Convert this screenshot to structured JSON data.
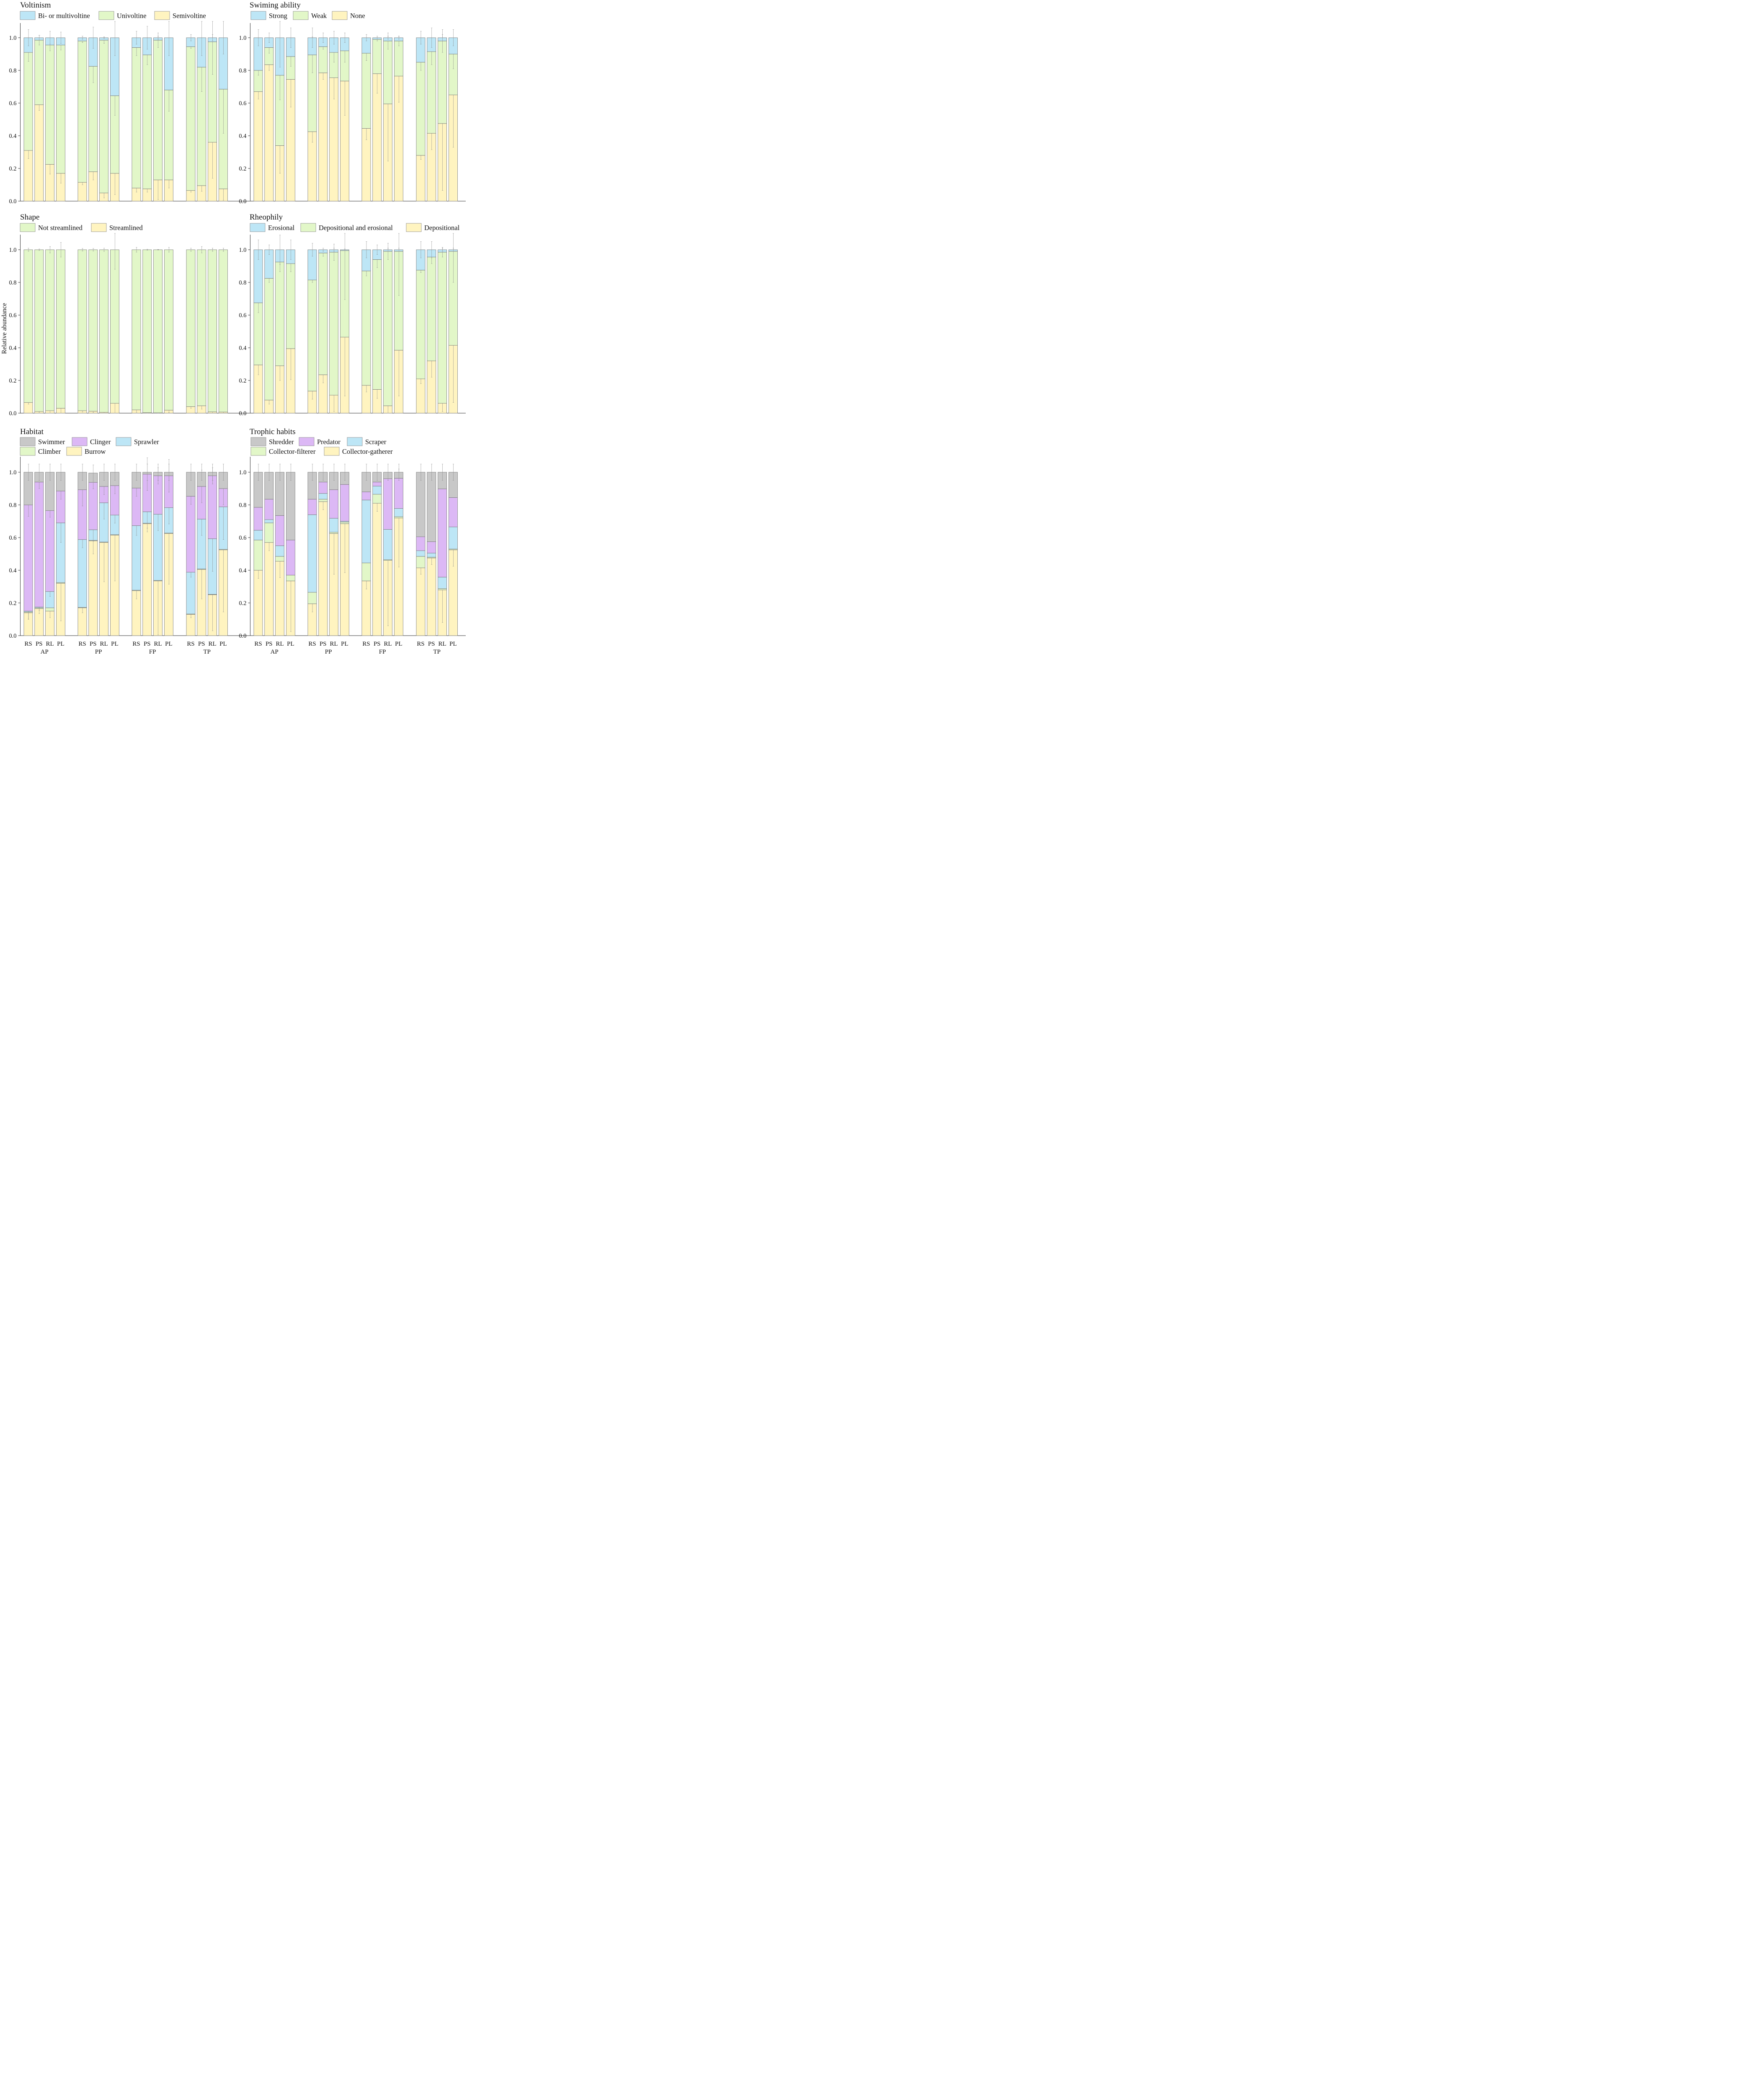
{
  "y_axis_title": "Relative abundance",
  "groups": [
    "AP",
    "PP",
    "FP",
    "TP"
  ],
  "sites": [
    "RS",
    "PS",
    "RL",
    "PL"
  ],
  "y_ticks": [
    "0.0",
    "0.2",
    "0.4",
    "0.6",
    "0.8",
    "1.0"
  ],
  "chart_data": [
    {
      "type": "bar",
      "stacked": true,
      "title": "Voltinism",
      "categories": [
        "AP-RS",
        "AP-PS",
        "AP-RL",
        "AP-PL",
        "PP-RS",
        "PP-PS",
        "PP-RL",
        "PP-PL",
        "FP-RS",
        "FP-PS",
        "FP-RL",
        "FP-PL",
        "TP-RS",
        "TP-PS",
        "TP-RL",
        "TP-PL"
      ],
      "ylim": [
        0,
        1
      ],
      "ylabel": "Relative abundance",
      "series": [
        {
          "name": "Semivoltine",
          "color": "#fff4c0",
          "values": [
            0.31,
            0.59,
            0.225,
            0.17,
            0.115,
            0.18,
            0.05,
            0.17,
            0.08,
            0.075,
            0.13,
            0.13,
            0.065,
            0.095,
            0.36,
            0.075
          ],
          "errors": [
            0.05,
            0.035,
            0.06,
            0.06,
            0.015,
            0.05,
            0.03,
            0.13,
            0.025,
            0.02,
            0.12,
            0.05,
            0.01,
            0.035,
            0.22,
            0.07
          ]
        },
        {
          "name": "Univoltine",
          "color": "#e2f7c8",
          "values": [
            0.6,
            0.395,
            0.73,
            0.785,
            0.865,
            0.645,
            0.935,
            0.475,
            0.86,
            0.82,
            0.855,
            0.55,
            0.88,
            0.725,
            0.615,
            0.61
          ],
          "errors": [
            0.055,
            0.03,
            0.035,
            0.03,
            0.01,
            0.1,
            0.02,
            0.12,
            0.05,
            0.06,
            0.045,
            0.13,
            0.01,
            0.15,
            0.2,
            0.27
          ]
        },
        {
          "name": "Bi- or multivoltine",
          "color": "#bde6f6",
          "values": [
            0.09,
            0.015,
            0.045,
            0.045,
            0.02,
            0.175,
            0.015,
            0.355,
            0.06,
            0.105,
            0.015,
            0.32,
            0.055,
            0.18,
            0.025,
            0.315
          ],
          "errors": [
            0.05,
            0.015,
            0.04,
            0.035,
            0.01,
            0.065,
            0.005,
            0.11,
            0.04,
            0.07,
            0.01,
            0.11,
            0.02,
            0.11,
            0.02,
            0.1
          ]
        }
      ]
    },
    {
      "type": "bar",
      "stacked": true,
      "title": "Swiming ability",
      "categories": [
        "AP-RS",
        "AP-PS",
        "AP-RL",
        "AP-PL",
        "PP-RS",
        "PP-PS",
        "PP-RL",
        "PP-PL",
        "FP-RS",
        "FP-PS",
        "FP-RL",
        "FP-PL",
        "TP-RS",
        "TP-PS",
        "TP-RL",
        "TP-PL"
      ],
      "ylim": [
        0,
        1
      ],
      "series": [
        {
          "name": "None",
          "color": "#fff4c0",
          "values": [
            0.67,
            0.835,
            0.34,
            0.745,
            0.425,
            0.785,
            0.755,
            0.735,
            0.445,
            0.78,
            0.595,
            0.765,
            0.28,
            0.415,
            0.475,
            0.65
          ],
          "errors": [
            0.045,
            0.035,
            0.17,
            0.17,
            0.065,
            0.04,
            0.13,
            0.21,
            0.07,
            0.12,
            0.35,
            0.16,
            0.025,
            0.1,
            0.41,
            0.32
          ]
        },
        {
          "name": "Weak",
          "color": "#e2f7c8",
          "values": [
            0.13,
            0.105,
            0.43,
            0.14,
            0.47,
            0.16,
            0.155,
            0.185,
            0.46,
            0.21,
            0.385,
            0.215,
            0.57,
            0.5,
            0.505,
            0.25
          ],
          "errors": [
            0.03,
            0.035,
            0.15,
            0.06,
            0.11,
            0.015,
            0.06,
            0.07,
            0.045,
            0.01,
            0.05,
            0.03,
            0.05,
            0.08,
            0.07,
            0.09
          ]
        },
        {
          "name": "Strong",
          "color": "#bde6f6",
          "values": [
            0.2,
            0.06,
            0.23,
            0.115,
            0.105,
            0.055,
            0.09,
            0.08,
            0.095,
            0.01,
            0.02,
            0.02,
            0.15,
            0.085,
            0.02,
            0.1
          ],
          "errors": [
            0.05,
            0.03,
            0.18,
            0.06,
            0.06,
            0.03,
            0.04,
            0.03,
            0.02,
            0.01,
            0.01,
            0.01,
            0.04,
            0.06,
            0.02,
            0.05
          ]
        }
      ]
    },
    {
      "type": "bar",
      "stacked": true,
      "title": "Shape",
      "categories": [
        "AP-RS",
        "AP-PS",
        "AP-RL",
        "AP-PL",
        "PP-RS",
        "PP-PS",
        "PP-RL",
        "PP-PL",
        "FP-RS",
        "FP-PS",
        "FP-RL",
        "FP-PL",
        "TP-RS",
        "TP-PS",
        "TP-RL",
        "TP-PL"
      ],
      "ylim": [
        0,
        1
      ],
      "series": [
        {
          "name": "Streamlined",
          "color": "#fff4c0",
          "values": [
            0.065,
            0.01,
            0.015,
            0.03,
            0.015,
            0.012,
            0.005,
            0.06,
            0.02,
            0.003,
            0.002,
            0.018,
            0.04,
            0.045,
            0.008,
            0.007
          ],
          "errors": [
            0.01,
            0.005,
            0.02,
            0.045,
            0.008,
            0.008,
            0.01,
            0.12,
            0.015,
            0.003,
            0.002,
            0.015,
            0.01,
            0.02,
            0.01,
            0.01
          ]
        },
        {
          "name": "Not streamlined",
          "color": "#e2f7c8",
          "values": [
            0.935,
            0.99,
            0.985,
            0.97,
            0.985,
            0.988,
            0.995,
            0.94,
            0.98,
            0.997,
            0.998,
            0.982,
            0.96,
            0.955,
            0.992,
            0.993
          ],
          "errors": [
            0.01,
            0.005,
            0.02,
            0.045,
            0.008,
            0.008,
            0.01,
            0.12,
            0.015,
            0.003,
            0.002,
            0.015,
            0.01,
            0.02,
            0.01,
            0.01
          ]
        }
      ]
    },
    {
      "type": "bar",
      "stacked": true,
      "title": "Rheophily",
      "categories": [
        "AP-RS",
        "AP-PS",
        "AP-RL",
        "AP-PL",
        "PP-RS",
        "PP-PS",
        "PP-RL",
        "PP-PL",
        "FP-RS",
        "FP-PS",
        "FP-RL",
        "FP-PL",
        "TP-RS",
        "TP-PS",
        "TP-RL",
        "TP-PL"
      ],
      "ylim": [
        0,
        1
      ],
      "series": [
        {
          "name": "Depositional",
          "color": "#fff4c0",
          "values": [
            0.295,
            0.08,
            0.29,
            0.395,
            0.135,
            0.235,
            0.11,
            0.465,
            0.17,
            0.145,
            0.045,
            0.385,
            0.21,
            0.32,
            0.06,
            0.415
          ],
          "errors": [
            0.06,
            0.025,
            0.09,
            0.19,
            0.05,
            0.05,
            0.1,
            0.36,
            0.04,
            0.055,
            0.05,
            0.28,
            0.03,
            0.1,
            0.05,
            0.35
          ]
        },
        {
          "name": "Depositional and erosional",
          "color": "#e2f7c8",
          "values": [
            0.38,
            0.745,
            0.635,
            0.52,
            0.68,
            0.745,
            0.875,
            0.53,
            0.7,
            0.795,
            0.945,
            0.605,
            0.665,
            0.635,
            0.925,
            0.575
          ],
          "errors": [
            0.06,
            0.025,
            0.06,
            0.05,
            0.015,
            0.02,
            0.05,
            0.3,
            0.03,
            0.05,
            0.05,
            0.27,
            0.015,
            0.04,
            0.03,
            0.19
          ]
        },
        {
          "name": "Erosional",
          "color": "#bde6f6",
          "values": [
            0.325,
            0.175,
            0.075,
            0.085,
            0.185,
            0.02,
            0.015,
            0.005,
            0.13,
            0.06,
            0.01,
            0.01,
            0.125,
            0.045,
            0.015,
            0.01
          ],
          "errors": [
            0.06,
            0.03,
            0.09,
            0.06,
            0.04,
            0.01,
            0.01,
            0.005,
            0.05,
            0.03,
            0.01,
            0.01,
            0.05,
            0.05,
            0.01,
            0.01
          ]
        }
      ]
    },
    {
      "type": "bar",
      "stacked": true,
      "title": "Habitat",
      "categories": [
        "AP-RS",
        "AP-PS",
        "AP-RL",
        "AP-PL",
        "PP-RS",
        "PP-PS",
        "PP-RL",
        "PP-PL",
        "FP-RS",
        "FP-PS",
        "FP-RL",
        "FP-PL",
        "TP-RS",
        "TP-PS",
        "TP-RL",
        "TP-PL"
      ],
      "ylim": [
        0,
        1
      ],
      "series": [
        {
          "name": "Burrow",
          "color": "#fff4c0",
          "values": [
            0.14,
            0.165,
            0.15,
            0.32,
            0.17,
            0.58,
            0.57,
            0.615,
            0.275,
            0.685,
            0.335,
            0.625,
            0.13,
            0.405,
            0.25,
            0.525
          ],
          "errors": [
            0.04,
            0.03,
            0.04,
            0.23,
            0.03,
            0.08,
            0.24,
            0.28,
            0.05,
            0.05,
            0.33,
            0.31,
            0.02,
            0.18,
            0.22,
            0.38
          ]
        },
        {
          "name": "Climber",
          "color": "#e2f7c8",
          "values": [
            0.005,
            0.005,
            0.02,
            0.005,
            0.003,
            0.003,
            0.003,
            0.003,
            0.003,
            0.003,
            0.003,
            0.003,
            0.003,
            0.003,
            0.003,
            0.003
          ],
          "errors": [
            0,
            0,
            0,
            0,
            0,
            0,
            0,
            0,
            0,
            0,
            0,
            0,
            0,
            0,
            0,
            0
          ]
        },
        {
          "name": "Sprawler",
          "color": "#bde6f6",
          "values": [
            0.005,
            0.005,
            0.1,
            0.365,
            0.415,
            0.065,
            0.24,
            0.12,
            0.395,
            0.07,
            0.405,
            0.155,
            0.255,
            0.305,
            0.34,
            0.26
          ],
          "errors": [
            0.05,
            0.02,
            0.03,
            0.12,
            0.05,
            0.07,
            0.1,
            0.05,
            0.06,
            0.1,
            0.1,
            0.1,
            0.03,
            0.1,
            0.2,
            0.2
          ]
        },
        {
          "name": "Clinger",
          "color": "#dcb8f5",
          "values": [
            0.65,
            0.765,
            0.495,
            0.195,
            0.305,
            0.29,
            0.1,
            0.18,
            0.23,
            0.23,
            0.235,
            0.195,
            0.465,
            0.2,
            0.385,
            0.112
          ],
          "errors": [
            0.07,
            0.04,
            0.04,
            0.05,
            0.1,
            0.04,
            0.05,
            0.05,
            0.05,
            0.1,
            0.05,
            0.1,
            0.05,
            0.1,
            0.05,
            0.1
          ]
        },
        {
          "name": "Swimmer",
          "color": "#c8c8c8",
          "values": [
            0.2,
            0.06,
            0.235,
            0.115,
            0.107,
            0.057,
            0.087,
            0.082,
            0.097,
            0.012,
            0.022,
            0.022,
            0.147,
            0.087,
            0.022,
            0.1
          ],
          "errors": [
            0.05,
            0.05,
            0.05,
            0.05,
            0.05,
            0.05,
            0.05,
            0.05,
            0.05,
            0.05,
            0.05,
            0.05,
            0.05,
            0.05,
            0.05,
            0.05
          ]
        }
      ]
    },
    {
      "type": "bar",
      "stacked": true,
      "title": "Trophic habits",
      "categories": [
        "AP-RS",
        "AP-PS",
        "AP-RL",
        "AP-PL",
        "PP-RS",
        "PP-PS",
        "PP-RL",
        "PP-PL",
        "FP-RS",
        "FP-PS",
        "FP-RL",
        "FP-PL",
        "TP-RS",
        "TP-PS",
        "TP-RL",
        "TP-PL"
      ],
      "ylim": [
        0,
        1
      ],
      "series": [
        {
          "name": "Collector-gatherer",
          "color": "#fff4c0",
          "values": [
            0.4,
            0.57,
            0.455,
            0.335,
            0.195,
            0.82,
            0.625,
            0.685,
            0.335,
            0.81,
            0.46,
            0.72,
            0.415,
            0.475,
            0.28,
            0.525
          ],
          "errors": [
            0.05,
            0.05,
            0.1,
            0.31,
            0.05,
            0.05,
            0.25,
            0.3,
            0.05,
            0.05,
            0.4,
            0.3,
            0.04,
            0.04,
            0.2,
            0.1
          ]
        },
        {
          "name": "Collector-filterer",
          "color": "#e2f7c8",
          "values": [
            0.185,
            0.12,
            0.03,
            0.035,
            0.07,
            0.015,
            0.008,
            0.01,
            0.11,
            0.055,
            0.005,
            0.008,
            0.07,
            0.005,
            0.008,
            0.005
          ],
          "errors": [
            0,
            0,
            0,
            0,
            0,
            0,
            0,
            0,
            0,
            0,
            0,
            0,
            0,
            0,
            0,
            0
          ]
        },
        {
          "name": "Scraper",
          "color": "#bde6f6",
          "values": [
            0.06,
            0.02,
            0.065,
            0.0,
            0.475,
            0.035,
            0.085,
            0.005,
            0.385,
            0.05,
            0.185,
            0.05,
            0.035,
            0.025,
            0.07,
            0.135
          ],
          "errors": [
            0,
            0,
            0,
            0,
            0,
            0,
            0,
            0,
            0,
            0,
            0,
            0,
            0,
            0,
            0,
            0
          ]
        },
        {
          "name": "Predator",
          "color": "#dcb8f5",
          "values": [
            0.14,
            0.125,
            0.185,
            0.215,
            0.095,
            0.07,
            0.175,
            0.225,
            0.05,
            0.025,
            0.31,
            0.185,
            0.085,
            0.07,
            0.54,
            0.18
          ],
          "errors": [
            0,
            0,
            0,
            0,
            0,
            0,
            0,
            0,
            0,
            0,
            0,
            0,
            0,
            0,
            0,
            0
          ]
        },
        {
          "name": "Shredder",
          "color": "#c8c8c8",
          "values": [
            0.215,
            0.165,
            0.265,
            0.415,
            0.165,
            0.06,
            0.107,
            0.075,
            0.12,
            0.06,
            0.04,
            0.037,
            0.395,
            0.425,
            0.102,
            0.155
          ],
          "errors": [
            0.05,
            0.05,
            0.05,
            0.05,
            0.05,
            0.05,
            0.05,
            0.05,
            0.05,
            0.05,
            0.05,
            0.05,
            0.05,
            0.05,
            0.05,
            0.05
          ]
        }
      ]
    }
  ]
}
